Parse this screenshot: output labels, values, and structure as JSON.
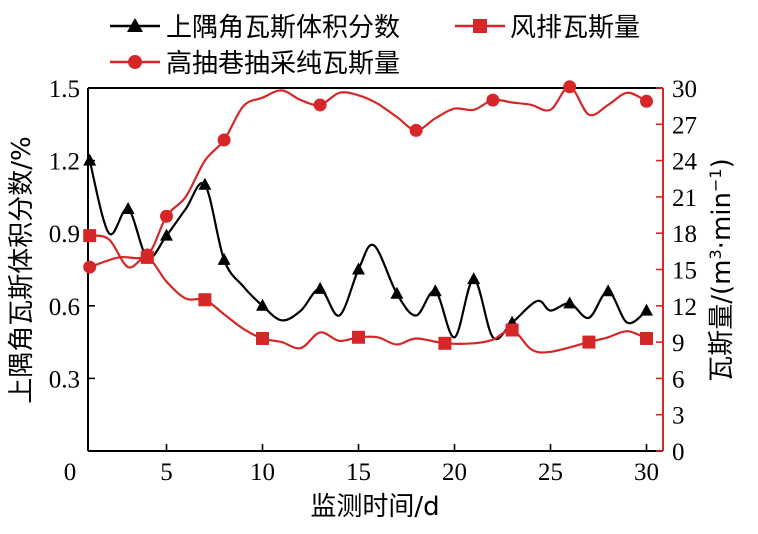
{
  "chart_data": {
    "type": "line",
    "xlabel": "监测时间/d",
    "ylabel_left": "上隅角瓦斯体积分数/%",
    "ylabel_right_prefix": "瓦斯量/(m",
    "ylabel_right_sup1": "3",
    "ylabel_right_mid": "·min",
    "ylabel_right_sup2": "−1",
    "ylabel_right_suffix": ")",
    "xlim": [
      0,
      31
    ],
    "ylim_left": [
      0,
      1.5
    ],
    "ylim_right": [
      0,
      30
    ],
    "x_ticks": [
      0,
      5,
      10,
      15,
      20,
      25,
      30
    ],
    "x_tick_labels": [
      "0",
      "5",
      "10",
      "15",
      "20",
      "25",
      "30"
    ],
    "y_left_ticks": [
      0.3,
      0.6,
      0.9,
      1.2,
      1.5
    ],
    "y_left_tick_labels": [
      "0.3",
      "0.6",
      "0.9",
      "1.2",
      "1.5"
    ],
    "y_right_ticks": [
      0,
      3,
      6,
      9,
      12,
      15,
      18,
      21,
      24,
      27,
      30
    ],
    "y_right_tick_labels": [
      "0",
      "3",
      "6",
      "9",
      "12",
      "15",
      "18",
      "21",
      "24",
      "27",
      "30"
    ],
    "legend_placement": "top",
    "colors": {
      "black": "#000000",
      "red": "#d62728"
    },
    "series": [
      {
        "name": "上隅角瓦斯体积分数",
        "axis": "left",
        "marker": "triangle",
        "color": "#000000",
        "markers": [
          [
            1,
            1.2
          ],
          [
            3,
            1.0
          ],
          [
            5,
            0.89
          ],
          [
            7,
            1.1
          ],
          [
            8,
            0.79
          ],
          [
            10,
            0.6
          ],
          [
            13,
            0.67
          ],
          [
            15,
            0.75
          ],
          [
            17,
            0.65
          ],
          [
            19,
            0.66
          ],
          [
            21,
            0.71
          ],
          [
            23,
            0.53
          ],
          [
            26,
            0.61
          ],
          [
            28,
            0.66
          ],
          [
            30,
            0.58
          ]
        ],
        "curve": [
          [
            1,
            1.2
          ],
          [
            2,
            0.9
          ],
          [
            3,
            1.0
          ],
          [
            4,
            0.8
          ],
          [
            5,
            0.89
          ],
          [
            6,
            1.0
          ],
          [
            7,
            1.1
          ],
          [
            8,
            0.79
          ],
          [
            9,
            0.68
          ],
          [
            10,
            0.6
          ],
          [
            11,
            0.54
          ],
          [
            12,
            0.58
          ],
          [
            13,
            0.67
          ],
          [
            14,
            0.56
          ],
          [
            15,
            0.75
          ],
          [
            15.8,
            0.85
          ],
          [
            17,
            0.65
          ],
          [
            18,
            0.56
          ],
          [
            19,
            0.66
          ],
          [
            20,
            0.47
          ],
          [
            21,
            0.71
          ],
          [
            22,
            0.47
          ],
          [
            23,
            0.53
          ],
          [
            24.3,
            0.62
          ],
          [
            25,
            0.58
          ],
          [
            26,
            0.61
          ],
          [
            27,
            0.55
          ],
          [
            28,
            0.66
          ],
          [
            29,
            0.53
          ],
          [
            30,
            0.58
          ]
        ]
      },
      {
        "name": "风排瓦斯量",
        "axis": "right",
        "marker": "square",
        "color": "#d62728",
        "markers": [
          [
            1,
            17.8
          ],
          [
            4,
            16.0
          ],
          [
            7,
            12.5
          ],
          [
            10,
            9.3
          ],
          [
            15,
            9.4
          ],
          [
            19.5,
            8.9
          ],
          [
            23,
            10.0
          ],
          [
            27,
            9.0
          ],
          [
            30,
            9.3
          ]
        ],
        "curve": [
          [
            1,
            17.8
          ],
          [
            2,
            17.5
          ],
          [
            3,
            15.2
          ],
          [
            4,
            16.0
          ],
          [
            5,
            14.0
          ],
          [
            6,
            12.6
          ],
          [
            7,
            12.5
          ],
          [
            8,
            11.3
          ],
          [
            9,
            10.1
          ],
          [
            10,
            9.3
          ],
          [
            11,
            9.0
          ],
          [
            12,
            8.5
          ],
          [
            13,
            9.8
          ],
          [
            14,
            9.1
          ],
          [
            15,
            9.4
          ],
          [
            16,
            9.4
          ],
          [
            17,
            8.8
          ],
          [
            18,
            9.3
          ],
          [
            19.5,
            8.9
          ],
          [
            21,
            8.9
          ],
          [
            22,
            9.2
          ],
          [
            23,
            10.0
          ],
          [
            24,
            8.4
          ],
          [
            25,
            8.2
          ],
          [
            27,
            9.0
          ],
          [
            28,
            9.4
          ],
          [
            29,
            9.9
          ],
          [
            30,
            9.3
          ]
        ]
      },
      {
        "name": "高抽巷抽采纯瓦斯量",
        "axis": "right",
        "marker": "circle",
        "color": "#d62728",
        "markers": [
          [
            1,
            15.2
          ],
          [
            4,
            16.2
          ],
          [
            5,
            19.4
          ],
          [
            8,
            25.7
          ],
          [
            13,
            28.6
          ],
          [
            18,
            26.5
          ],
          [
            22,
            29.0
          ],
          [
            26,
            30.1
          ],
          [
            30,
            28.9
          ]
        ],
        "curve": [
          [
            1,
            15.2
          ],
          [
            2.5,
            16.0
          ],
          [
            4,
            16.2
          ],
          [
            5,
            19.4
          ],
          [
            6,
            21.0
          ],
          [
            7,
            24.0
          ],
          [
            8,
            25.7
          ],
          [
            9,
            28.5
          ],
          [
            10,
            29.2
          ],
          [
            11,
            29.8
          ],
          [
            12,
            29.0
          ],
          [
            13,
            28.6
          ],
          [
            14,
            29.6
          ],
          [
            15,
            29.4
          ],
          [
            16,
            28.7
          ],
          [
            17,
            27.6
          ],
          [
            18,
            26.5
          ],
          [
            19,
            27.5
          ],
          [
            20,
            28.3
          ],
          [
            21,
            28.2
          ],
          [
            22,
            29.0
          ],
          [
            23,
            28.8
          ],
          [
            24,
            28.6
          ],
          [
            25,
            28.2
          ],
          [
            26,
            30.1
          ],
          [
            27,
            27.8
          ],
          [
            28,
            28.6
          ],
          [
            29,
            29.6
          ],
          [
            30,
            28.9
          ]
        ]
      }
    ]
  }
}
